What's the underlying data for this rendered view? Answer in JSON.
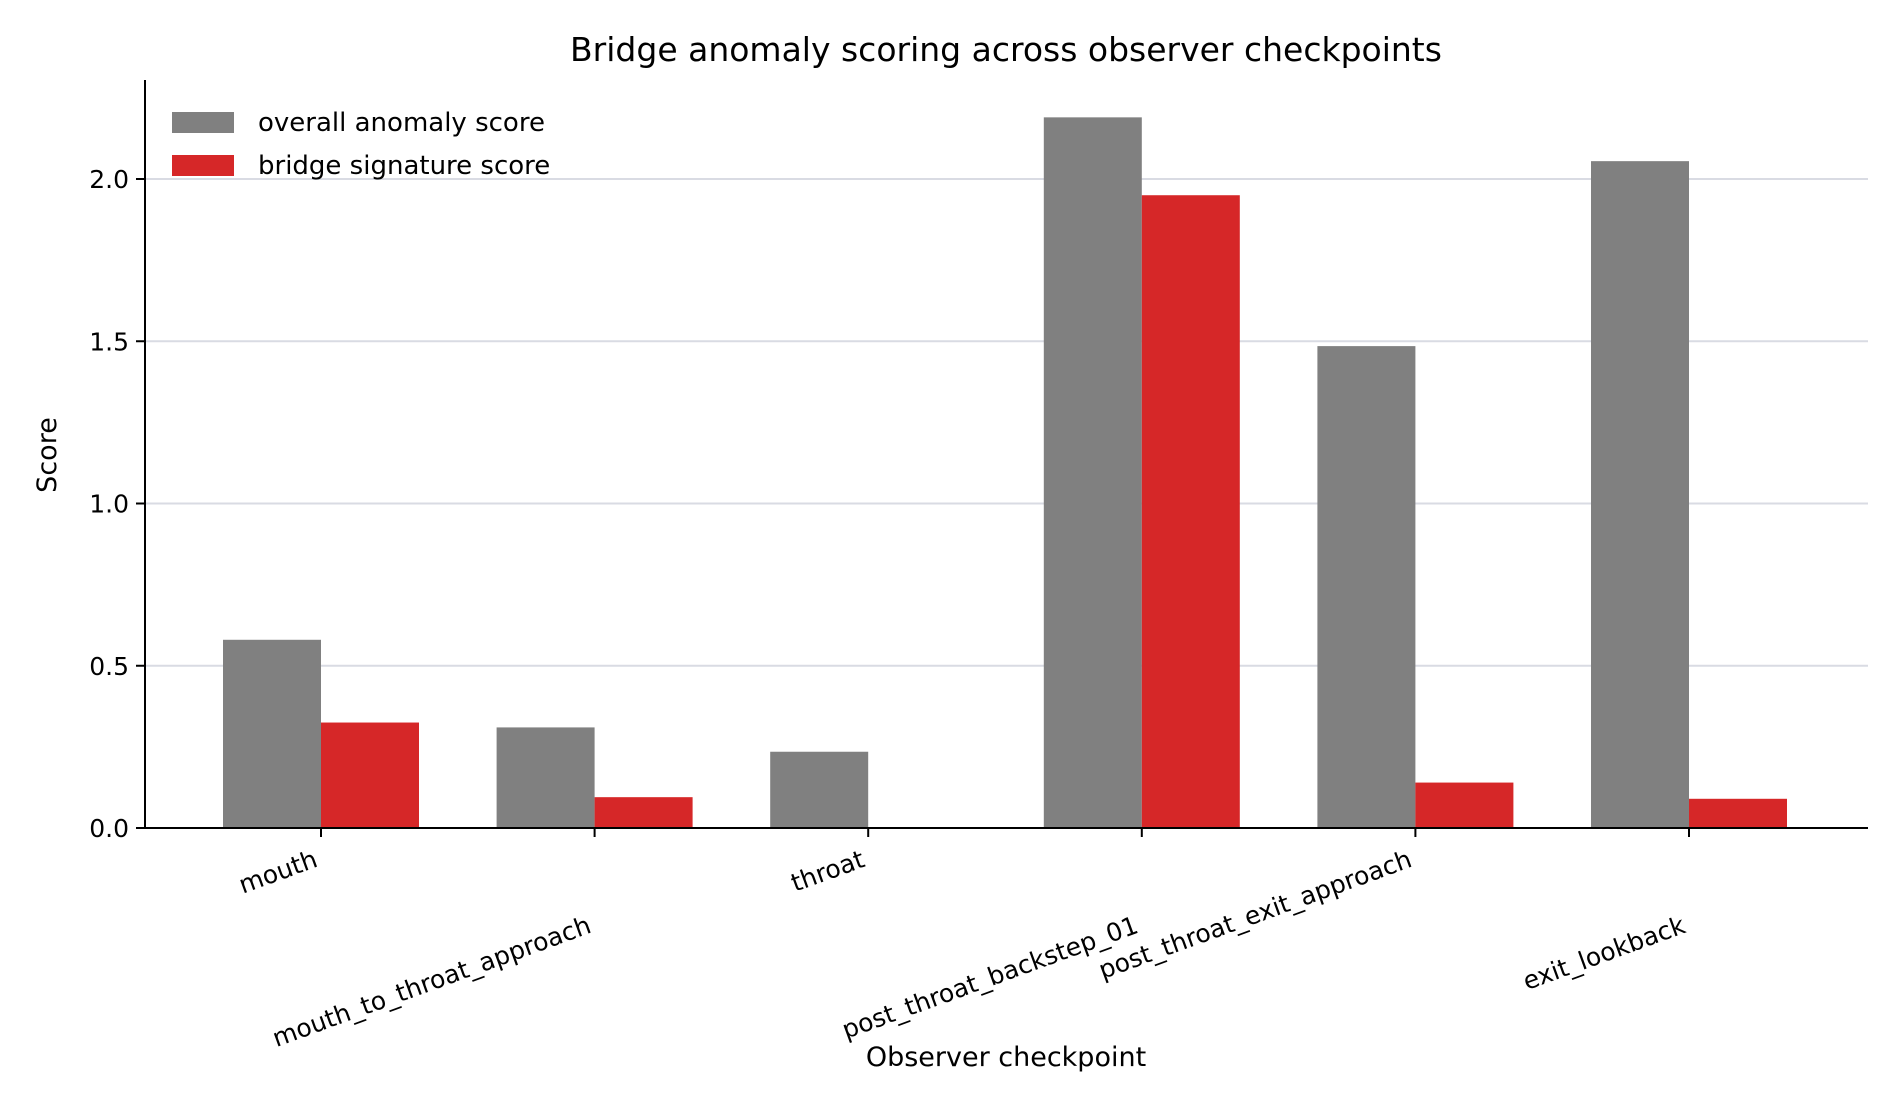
{
  "chart_data": {
    "type": "bar",
    "title": "Bridge anomaly scoring across observer checkpoints",
    "xlabel": "Observer checkpoint",
    "ylabel": "Score",
    "categories": [
      "mouth",
      "mouth_to_throat_approach",
      "throat",
      "post_throat_backstep_01",
      "post_throat_exit_approach",
      "exit_lookback"
    ],
    "series": [
      {
        "name": "overall anomaly score",
        "color": "#808080",
        "values": [
          0.58,
          0.31,
          0.235,
          2.19,
          1.485,
          2.055
        ]
      },
      {
        "name": "bridge signature score",
        "color": "#d62728",
        "values": [
          0.325,
          0.095,
          0.0,
          1.95,
          0.14,
          0.09
        ]
      }
    ],
    "ylim": [
      0,
      2.3
    ],
    "yticks": [
      "0.0",
      "0.5",
      "1.0",
      "1.5",
      "2.0"
    ],
    "grid": "y",
    "legend": "top-left"
  }
}
